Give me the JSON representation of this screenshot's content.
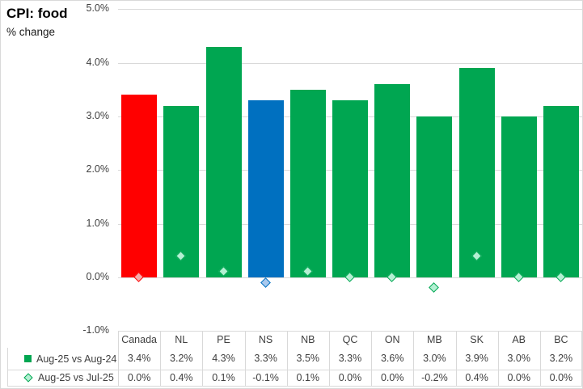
{
  "title": "CPI: food",
  "subtitle": "% change",
  "colors": {
    "grid": "#d9d9d9",
    "text": "#404040",
    "background": "#ffffff"
  },
  "chart_data": {
    "type": "bar",
    "title": "CPI: food",
    "ylabel": "% change",
    "categories": [
      "Canada",
      "NL",
      "PE",
      "NS",
      "NB",
      "QC",
      "ON",
      "MB",
      "SK",
      "AB",
      "BC"
    ],
    "series": [
      {
        "name": "Aug-25 vs Aug-24",
        "type": "bar",
        "values": [
          3.4,
          3.2,
          4.3,
          3.3,
          3.5,
          3.3,
          3.6,
          3.0,
          3.9,
          3.0,
          3.2
        ],
        "color": "#00a651"
      },
      {
        "name": "Aug-25 vs Jul-25",
        "type": "scatter",
        "marker": "diamond",
        "values": [
          0.0,
          0.4,
          0.1,
          -0.1,
          0.1,
          0.0,
          0.0,
          -0.2,
          0.4,
          0.0,
          0.0
        ],
        "fill": "#b4f0d3",
        "border": "#00a651"
      }
    ],
    "bar_colors": [
      "#ff0000",
      "#00a651",
      "#00a651",
      "#0070c0",
      "#00a651",
      "#00a651",
      "#00a651",
      "#00a651",
      "#00a651",
      "#00a651",
      "#00a651"
    ],
    "marker_fills": [
      "#f6adac",
      "#b4f0d3",
      "#b4f0d3",
      "#a9c9ee",
      "#b4f0d3",
      "#b4f0d3",
      "#b4f0d3",
      "#b4f0d3",
      "#b4f0d3",
      "#b4f0d3",
      "#b4f0d3"
    ],
    "marker_borders": [
      "#ff0000",
      "#00a651",
      "#00a651",
      "#0070c0",
      "#00a651",
      "#00a651",
      "#00a651",
      "#00a651",
      "#00a651",
      "#00a651",
      "#00a651"
    ],
    "ylim": [
      -1.0,
      5.0
    ],
    "ytick_labels": [
      "5.0%",
      "4.0%",
      "3.0%",
      "2.0%",
      "1.0%",
      "0.0%",
      "-1.0%"
    ],
    "ytick_values": [
      5,
      4,
      3,
      2,
      1,
      0,
      -1
    ],
    "grid": true,
    "legend_position": "data-table-left",
    "value_suffix": "%"
  }
}
